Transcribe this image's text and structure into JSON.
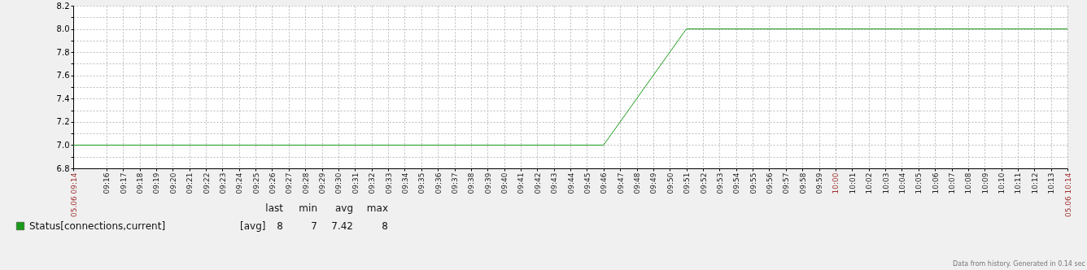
{
  "chart_data": {
    "type": "line",
    "series": [
      {
        "name": "Status[connections,current]",
        "color": "#1a9a1a",
        "x": [
          9.2333,
          9.7667,
          9.85,
          10.2333
        ],
        "values": [
          7,
          7,
          8,
          8
        ]
      }
    ],
    "xlim": [
      9.2333,
      10.2333
    ],
    "xticks": [
      {
        "value": 9.2333,
        "label": "05.06 09:14"
      },
      {
        "value": 9.2667,
        "label": "09:16"
      },
      {
        "value": 9.2833,
        "label": "09:17"
      },
      {
        "value": 9.3,
        "label": "09:18"
      },
      {
        "value": 9.3167,
        "label": "09:19"
      },
      {
        "value": 9.3333,
        "label": "09:20"
      },
      {
        "value": 9.35,
        "label": "09:21"
      },
      {
        "value": 9.3667,
        "label": "09:22"
      },
      {
        "value": 9.3833,
        "label": "09:23"
      },
      {
        "value": 9.4,
        "label": "09:24"
      },
      {
        "value": 9.4167,
        "label": "09:25"
      },
      {
        "value": 9.4333,
        "label": "09:26"
      },
      {
        "value": 9.45,
        "label": "09:27"
      },
      {
        "value": 9.4667,
        "label": "09:28"
      },
      {
        "value": 9.4833,
        "label": "09:29"
      },
      {
        "value": 9.5,
        "label": "09:30"
      },
      {
        "value": 9.5167,
        "label": "09:31"
      },
      {
        "value": 9.5333,
        "label": "09:32"
      },
      {
        "value": 9.55,
        "label": "09:33"
      },
      {
        "value": 9.5667,
        "label": "09:34"
      },
      {
        "value": 9.5833,
        "label": "09:35"
      },
      {
        "value": 9.6,
        "label": "09:36"
      },
      {
        "value": 9.6167,
        "label": "09:37"
      },
      {
        "value": 9.6333,
        "label": "09:38"
      },
      {
        "value": 9.65,
        "label": "09:39"
      },
      {
        "value": 9.6667,
        "label": "09:40"
      },
      {
        "value": 9.6833,
        "label": "09:41"
      },
      {
        "value": 9.7,
        "label": "09:42"
      },
      {
        "value": 9.7167,
        "label": "09:43"
      },
      {
        "value": 9.7333,
        "label": "09:44"
      },
      {
        "value": 9.75,
        "label": "09:45"
      },
      {
        "value": 9.7667,
        "label": "09:46"
      },
      {
        "value": 9.7833,
        "label": "09:47"
      },
      {
        "value": 9.8,
        "label": "09:48"
      },
      {
        "value": 9.8167,
        "label": "09:49"
      },
      {
        "value": 9.8333,
        "label": "09:50"
      },
      {
        "value": 9.85,
        "label": "09:51"
      },
      {
        "value": 9.8667,
        "label": "09:52"
      },
      {
        "value": 9.8833,
        "label": "09:53"
      },
      {
        "value": 9.9,
        "label": "09:54"
      },
      {
        "value": 9.9167,
        "label": "09:55"
      },
      {
        "value": 9.9333,
        "label": "09:56"
      },
      {
        "value": 9.95,
        "label": "09:57"
      },
      {
        "value": 9.9667,
        "label": "09:58"
      },
      {
        "value": 9.9833,
        "label": "09:59"
      },
      {
        "value": 10,
        "label": "10:00"
      },
      {
        "value": 10.0167,
        "label": "10:01"
      },
      {
        "value": 10.0333,
        "label": "10:02"
      },
      {
        "value": 10.05,
        "label": "10:03"
      },
      {
        "value": 10.0667,
        "label": "10:04"
      },
      {
        "value": 10.0833,
        "label": "10:05"
      },
      {
        "value": 10.1,
        "label": "10:06"
      },
      {
        "value": 10.1167,
        "label": "10:07"
      },
      {
        "value": 10.1333,
        "label": "10:08"
      },
      {
        "value": 10.15,
        "label": "10:09"
      },
      {
        "value": 10.1667,
        "label": "10:10"
      },
      {
        "value": 10.1833,
        "label": "10:11"
      },
      {
        "value": 10.2,
        "label": "10:12"
      },
      {
        "value": 10.2167,
        "label": "10:13"
      },
      {
        "value": 10.2333,
        "label": "05.06 10:14"
      }
    ],
    "ylim": [
      6.8,
      8.2
    ],
    "yticks": [
      "6.8",
      {
        "value": 6.9,
        "label": null
      },
      {
        "value": 7.0,
        "label": "7.0"
      },
      {
        "value": 7.1,
        "label": null
      },
      {
        "value": 7.2,
        "label": "7.2"
      },
      {
        "value": 7.3,
        "label": null
      },
      {
        "value": 7.4,
        "label": "7.4"
      },
      {
        "value": 7.5,
        "label": null
      },
      {
        "value": 7.6,
        "label": "7.6"
      },
      {
        "value": 7.7,
        "label": null
      },
      {
        "value": 7.8,
        "label": "7.8"
      },
      {
        "value": 7.9,
        "label": null
      },
      {
        "value": 8.0,
        "label": "8.0"
      },
      {
        "value": 8.1,
        "label": null
      },
      {
        "value": 8.2,
        "label": "8.2"
      }
    ],
    "grid": true,
    "legend": "bottom",
    "line_style": "solid",
    "annotations": [
      "[avg]",
      "last",
      "min",
      "avg",
      "max",
      "8",
      "7",
      "7.42",
      "8",
      "Data from history. Generated in 0.14 sec"
    ]
  }
}
